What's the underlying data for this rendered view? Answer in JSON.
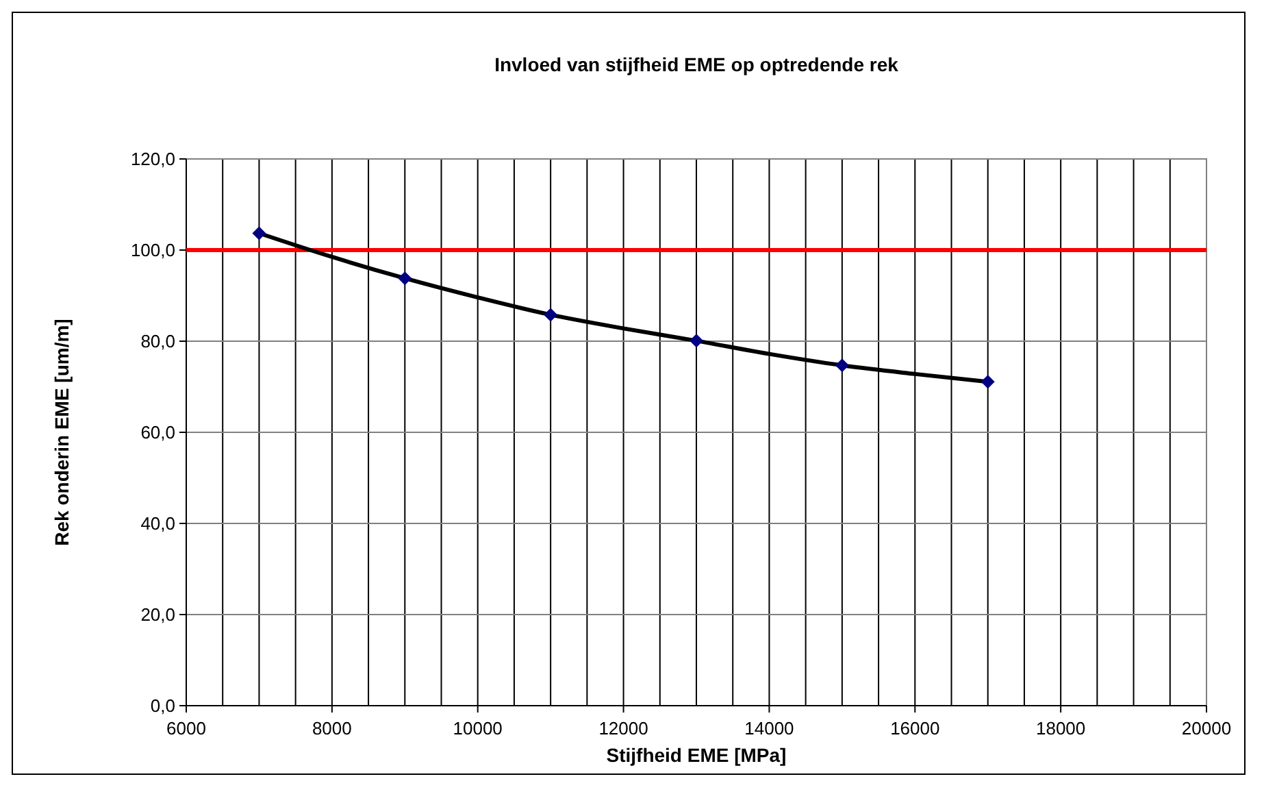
{
  "chart_data": {
    "type": "scatter",
    "title": "Invloed van stijfheid EME op optredende rek",
    "xlabel": "Stijfheid EME [MPa]",
    "ylabel": "Rek onderin EME [um/m]",
    "x": [
      7000,
      9000,
      11000,
      13000,
      15000,
      17000
    ],
    "series": [
      {
        "color": "#000080",
        "marker": "diamond",
        "values": [
          103.7,
          93.8,
          85.8,
          80.1,
          74.7,
          71.1
        ]
      },
      {
        "type": "line",
        "color": "#000000",
        "marker": "none",
        "x": [
          7000,
          8000,
          9000,
          10000,
          11000,
          12000,
          13000,
          14000,
          15000,
          16000,
          17000
        ],
        "values": [
          103.7,
          98.5,
          93.8,
          89.6,
          85.8,
          82.8,
          80.1,
          77.2,
          74.7,
          72.8,
          71.1
        ]
      }
    ],
    "xlim": [
      6000,
      20000
    ],
    "xticks": [
      6000,
      {
        "value": 6500,
        "label": null
      },
      {
        "value": 7000,
        "label": null
      },
      {
        "value": 7500,
        "label": null
      },
      8000,
      {
        "value": 8500,
        "label": null
      },
      {
        "value": 9000,
        "label": null
      },
      {
        "value": 9500,
        "label": null
      },
      10000,
      {
        "value": 10500,
        "label": null
      },
      {
        "value": 11000,
        "label": null
      },
      {
        "value": 11500,
        "label": null
      },
      12000,
      {
        "value": 12500,
        "label": null
      },
      {
        "value": 13000,
        "label": null
      },
      {
        "value": 13500,
        "label": null
      },
      14000,
      {
        "value": 14500,
        "label": null
      },
      {
        "value": 15000,
        "label": null
      },
      {
        "value": 15500,
        "label": null
      },
      16000,
      {
        "value": 16500,
        "label": null
      },
      {
        "value": 17000,
        "label": null
      },
      {
        "value": 17500,
        "label": null
      },
      18000,
      {
        "value": 18500,
        "label": null
      },
      {
        "value": 19000,
        "label": null
      },
      {
        "value": 19500,
        "label": null
      },
      20000
    ],
    "ylim": [
      0,
      120
    ],
    "yticks": [
      {
        "value": 0,
        "label": "0,0"
      },
      {
        "value": 20,
        "label": "20,0"
      },
      {
        "value": 40,
        "label": "40,0"
      },
      {
        "value": 60,
        "label": "60,0"
      },
      {
        "value": 80,
        "label": "80,0"
      },
      {
        "value": 100,
        "label": "100,0"
      },
      {
        "value": 120,
        "label": "120,0"
      }
    ],
    "grid": true,
    "ref_lines": [
      {
        "axis": "y",
        "value": 100,
        "color": "#ff0000"
      }
    ]
  }
}
